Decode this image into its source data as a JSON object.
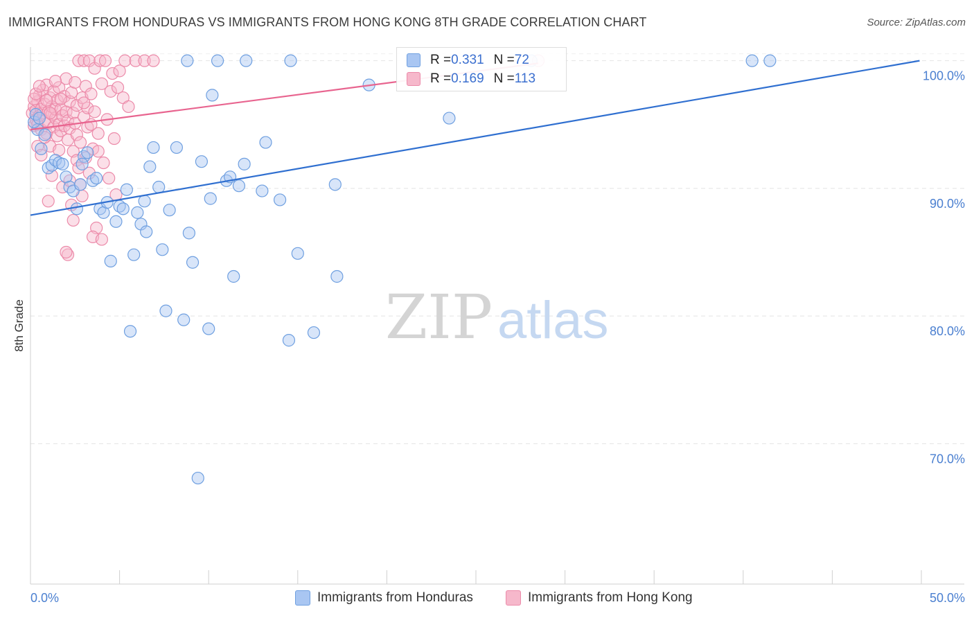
{
  "header": {
    "title": "IMMIGRANTS FROM HONDURAS VS IMMIGRANTS FROM HONG KONG 8TH GRADE CORRELATION CHART",
    "source": "Source: ZipAtlas.com"
  },
  "watermark": {
    "zip": "ZIP",
    "atlas": "atlas"
  },
  "colors": {
    "blue_fill": "#a9c6f2",
    "blue_stroke": "#6e9fe0",
    "blue_line": "#2f6fd0",
    "pink_fill": "#f6b8cb",
    "pink_stroke": "#ec8aa9",
    "pink_line": "#e8648f",
    "axis_label": "#4a7fd0",
    "grid": "#e4e4e4"
  },
  "legend": {
    "rows": [
      {
        "r_label": "R = ",
        "r_value": "0.331",
        "n_label": "N = ",
        "n_value": "72"
      },
      {
        "r_label": "R = ",
        "r_value": "0.169",
        "n_label": "N = ",
        "n_value": "113"
      }
    ]
  },
  "bottom_legend": {
    "items": [
      "Immigrants from Honduras",
      "Immigrants from Hong Kong"
    ]
  },
  "chart_data": {
    "type": "scatter",
    "title": "IMMIGRANTS FROM HONDURAS VS IMMIGRANTS FROM HONG KONG 8TH GRADE CORRELATION CHART",
    "xlabel": "",
    "ylabel": "8th Grade",
    "xlim": [
      0,
      50
    ],
    "ylim": [
      59,
      101.5
    ],
    "x_tick_labels": [
      "0.0%",
      "50.0%"
    ],
    "y_ticks": [
      100,
      90,
      80,
      70
    ],
    "y_tick_labels": [
      "100.0%",
      "90.0%",
      "80.0%",
      "70.0%"
    ],
    "grid": true,
    "legend_position": "top-center",
    "series": [
      {
        "name": "Immigrants from Honduras",
        "r": 0.331,
        "n": 72,
        "trend": {
          "x": [
            0,
            49.9
          ],
          "y": [
            87.9,
            100.0
          ]
        },
        "points": [
          [
            0.4,
            94.6
          ],
          [
            0.6,
            93.1
          ],
          [
            0.8,
            94.2
          ],
          [
            1.0,
            91.6
          ],
          [
            1.2,
            91.8
          ],
          [
            1.4,
            92.2
          ],
          [
            1.6,
            92.0
          ],
          [
            1.8,
            91.9
          ],
          [
            2.0,
            90.9
          ],
          [
            2.2,
            90.1
          ],
          [
            2.4,
            89.8
          ],
          [
            2.6,
            88.4
          ],
          [
            2.8,
            90.3
          ],
          [
            3.0,
            92.5
          ],
          [
            3.2,
            92.8
          ],
          [
            3.5,
            90.6
          ],
          [
            3.7,
            90.8
          ],
          [
            3.9,
            88.4
          ],
          [
            4.1,
            88.1
          ],
          [
            4.3,
            88.9
          ],
          [
            4.5,
            84.3
          ],
          [
            4.8,
            87.4
          ],
          [
            5.0,
            88.6
          ],
          [
            5.2,
            88.4
          ],
          [
            5.4,
            89.9
          ],
          [
            5.6,
            78.8
          ],
          [
            5.8,
            84.8
          ],
          [
            6.0,
            88.1
          ],
          [
            6.2,
            87.2
          ],
          [
            6.4,
            89.0
          ],
          [
            6.5,
            86.6
          ],
          [
            6.7,
            91.7
          ],
          [
            6.9,
            93.2
          ],
          [
            7.2,
            90.1
          ],
          [
            7.4,
            85.2
          ],
          [
            7.6,
            80.4
          ],
          [
            7.8,
            88.3
          ],
          [
            8.2,
            93.2
          ],
          [
            8.6,
            79.7
          ],
          [
            8.8,
            100.0
          ],
          [
            8.9,
            86.5
          ],
          [
            9.1,
            84.2
          ],
          [
            9.4,
            67.3
          ],
          [
            9.6,
            92.1
          ],
          [
            10.0,
            79.0
          ],
          [
            10.1,
            89.2
          ],
          [
            10.2,
            97.3
          ],
          [
            10.5,
            100.0
          ],
          [
            11.0,
            90.6
          ],
          [
            11.2,
            90.9
          ],
          [
            11.4,
            83.1
          ],
          [
            11.7,
            90.2
          ],
          [
            12.0,
            91.9
          ],
          [
            12.1,
            100.0
          ],
          [
            13.0,
            89.8
          ],
          [
            13.2,
            93.6
          ],
          [
            14.0,
            89.1
          ],
          [
            14.5,
            78.1
          ],
          [
            14.6,
            100.0
          ],
          [
            15.0,
            84.9
          ],
          [
            15.9,
            78.7
          ],
          [
            17.1,
            90.3
          ],
          [
            17.2,
            83.1
          ],
          [
            19.0,
            98.1
          ],
          [
            23.5,
            95.5
          ],
          [
            28.1,
            100.0
          ],
          [
            40.5,
            100.0
          ],
          [
            41.5,
            100.0
          ],
          [
            0.2,
            95.2
          ],
          [
            0.3,
            95.8
          ],
          [
            0.5,
            95.5
          ],
          [
            2.9,
            91.9
          ]
        ]
      },
      {
        "name": "Immigrants from Hong Kong",
        "r": 0.169,
        "n": 113,
        "trend": {
          "x": [
            0,
            28.5
          ],
          "y": [
            94.6,
            99.8
          ]
        },
        "points": [
          [
            0.1,
            95.9
          ],
          [
            0.2,
            96.4
          ],
          [
            0.2,
            94.9
          ],
          [
            0.3,
            96.1
          ],
          [
            0.3,
            95.4
          ],
          [
            0.4,
            96.8
          ],
          [
            0.4,
            95.0
          ],
          [
            0.5,
            97.3
          ],
          [
            0.5,
            95.7
          ],
          [
            0.6,
            96.2
          ],
          [
            0.6,
            94.6
          ],
          [
            0.7,
            95.9
          ],
          [
            0.7,
            97.7
          ],
          [
            0.8,
            95.3
          ],
          [
            0.8,
            96.6
          ],
          [
            0.9,
            98.1
          ],
          [
            0.9,
            94.3
          ],
          [
            1.0,
            96.0
          ],
          [
            1.0,
            95.1
          ],
          [
            1.1,
            97.1
          ],
          [
            1.1,
            93.3
          ],
          [
            1.2,
            95.8
          ],
          [
            1.2,
            96.4
          ],
          [
            1.3,
            94.8
          ],
          [
            1.3,
            97.6
          ],
          [
            1.4,
            95.5
          ],
          [
            1.4,
            96.2
          ],
          [
            1.5,
            94.1
          ],
          [
            1.5,
            96.9
          ],
          [
            1.6,
            95.0
          ],
          [
            1.6,
            97.9
          ],
          [
            1.7,
            96.2
          ],
          [
            1.7,
            94.5
          ],
          [
            1.8,
            95.7
          ],
          [
            1.8,
            90.1
          ],
          [
            1.9,
            97.2
          ],
          [
            1.9,
            94.9
          ],
          [
            2.0,
            96.0
          ],
          [
            2.0,
            98.6
          ],
          [
            2.1,
            95.3
          ],
          [
            2.1,
            93.8
          ],
          [
            2.2,
            96.8
          ],
          [
            2.2,
            94.7
          ],
          [
            2.3,
            97.5
          ],
          [
            2.3,
            88.7
          ],
          [
            2.4,
            95.9
          ],
          [
            2.4,
            92.9
          ],
          [
            2.5,
            98.3
          ],
          [
            2.5,
            95.1
          ],
          [
            2.6,
            94.2
          ],
          [
            2.6,
            96.5
          ],
          [
            2.7,
            100.0
          ],
          [
            2.8,
            93.6
          ],
          [
            2.8,
            90.3
          ],
          [
            2.9,
            97.1
          ],
          [
            2.9,
            89.4
          ],
          [
            3.0,
            100.0
          ],
          [
            3.0,
            95.6
          ],
          [
            3.1,
            92.4
          ],
          [
            3.1,
            98.0
          ],
          [
            3.2,
            94.8
          ],
          [
            3.2,
            96.3
          ],
          [
            3.3,
            100.0
          ],
          [
            3.3,
            91.2
          ],
          [
            3.4,
            97.4
          ],
          [
            3.4,
            95.0
          ],
          [
            3.5,
            93.1
          ],
          [
            3.6,
            99.4
          ],
          [
            3.6,
            96.0
          ],
          [
            3.7,
            86.9
          ],
          [
            3.8,
            94.3
          ],
          [
            3.9,
            100.0
          ],
          [
            4.0,
            98.2
          ],
          [
            4.1,
            92.0
          ],
          [
            4.2,
            100.0
          ],
          [
            4.3,
            95.4
          ],
          [
            4.4,
            90.8
          ],
          [
            4.5,
            97.6
          ],
          [
            4.6,
            99.0
          ],
          [
            4.7,
            93.9
          ],
          [
            4.8,
            89.5
          ],
          [
            4.9,
            97.9
          ],
          [
            5.0,
            99.2
          ],
          [
            5.2,
            97.1
          ],
          [
            5.3,
            100.0
          ],
          [
            5.5,
            96.4
          ],
          [
            5.9,
            100.0
          ],
          [
            6.4,
            100.0
          ],
          [
            6.9,
            100.0
          ],
          [
            2.1,
            84.8
          ],
          [
            2.0,
            85.0
          ],
          [
            3.5,
            86.2
          ],
          [
            4.0,
            86.0
          ],
          [
            2.4,
            87.5
          ],
          [
            1.0,
            89.0
          ],
          [
            0.4,
            93.3
          ],
          [
            0.6,
            92.6
          ],
          [
            1.2,
            91.0
          ],
          [
            28.5,
            100.0
          ],
          [
            0.2,
            97.0
          ],
          [
            0.3,
            97.4
          ],
          [
            0.5,
            98.0
          ],
          [
            0.8,
            94.0
          ],
          [
            1.6,
            93.0
          ],
          [
            2.6,
            92.2
          ],
          [
            3.8,
            92.9
          ],
          [
            2.2,
            90.6
          ],
          [
            1.4,
            98.4
          ],
          [
            0.9,
            96.9
          ],
          [
            1.7,
            97.0
          ],
          [
            3.0,
            96.7
          ],
          [
            2.7,
            91.6
          ],
          [
            1.1,
            95.9
          ]
        ]
      }
    ]
  }
}
